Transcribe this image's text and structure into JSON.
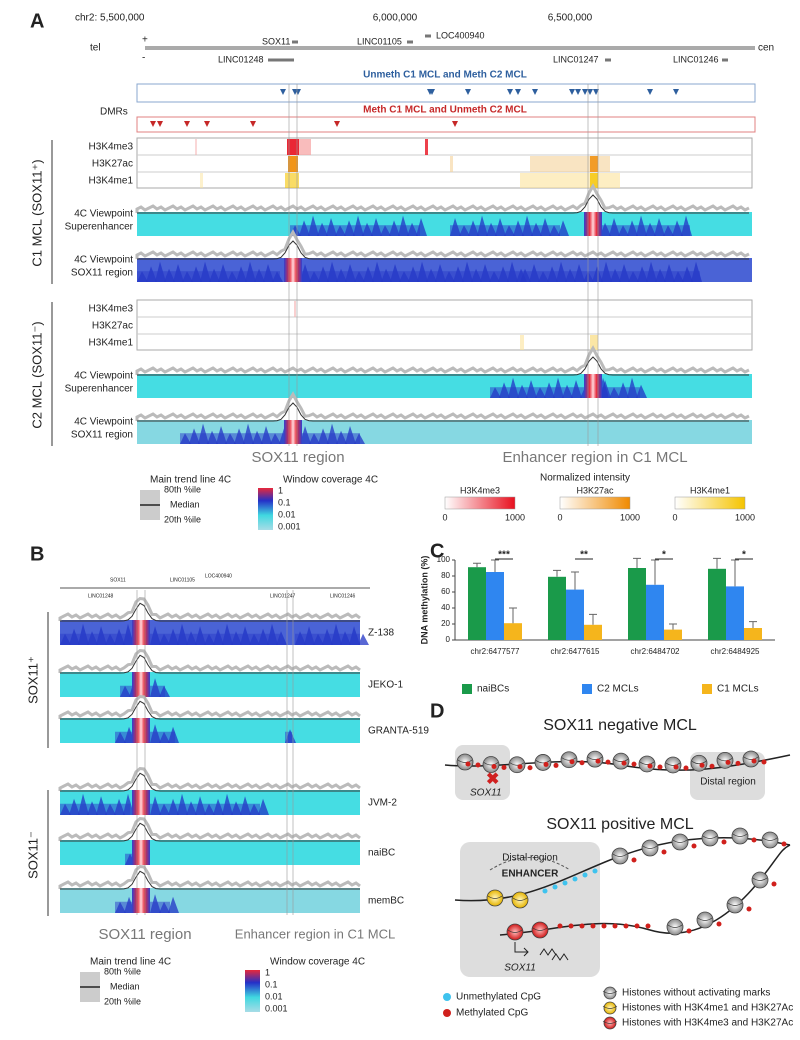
{
  "panel_a": {
    "label": "A",
    "coordinates": [
      "chr2: 5,500,000",
      "6,000,000",
      "6,500,000"
    ],
    "strand": [
      "tel",
      "+",
      "-",
      "cen"
    ],
    "genes": [
      "SOX11",
      "LINC01105",
      "LOC400940",
      "LINC01248",
      "LINC01247",
      "LINC01246"
    ],
    "dmr_label": "DMRs",
    "dmr_tracks": [
      "Unmeth C1 MCL and Meth  C2 MCL",
      "Meth C1 MCL and Unmeth C2 MCL"
    ],
    "groups": [
      {
        "name": "C1 MCL (SOX11⁺)",
        "histone_tracks": [
          "H3K4me3",
          "H3K27ac",
          "H3K4me1"
        ],
        "viewpoints": [
          [
            "4C Viewpoint",
            "Superenhancer"
          ],
          [
            "4C Viewpoint",
            "SOX11 region"
          ]
        ]
      },
      {
        "name": "C2 MCL (SOX11⁻)",
        "histone_tracks": [
          "H3K4me3",
          "H3K27ac",
          "H3K4me1"
        ],
        "viewpoints": [
          [
            "4C Viewpoint",
            "Superenhancer"
          ],
          [
            "4C Viewpoint",
            "SOX11 region"
          ]
        ]
      }
    ],
    "regions": [
      "SOX11 region",
      "Enhancer region in C1 MCL"
    ],
    "legend": {
      "trend_title": "Main trend line 4C",
      "trend_labels": [
        "80th %ile",
        "Median",
        "20th %ile"
      ],
      "coverage_title": "Window coverage 4C",
      "coverage_labels": [
        1,
        0.1,
        0.01,
        0.001
      ],
      "intensity_title": "Normalized intensity",
      "intensity_scales": [
        {
          "name": "H3K4me3",
          "min": 0,
          "max": 1000
        },
        {
          "name": "H3K27ac",
          "min": 0,
          "max": 1000
        },
        {
          "name": "H3K4me1",
          "min": 0,
          "max": 1000
        }
      ]
    }
  },
  "panel_b": {
    "label": "B",
    "genes": [
      "SOX11",
      "LINC01105",
      "LOC400940",
      "LINC01248",
      "LINC01247",
      "LINC01246"
    ],
    "groups": [
      {
        "name": "SOX11⁺",
        "samples": [
          "Z-138",
          "JEKO-1",
          "GRANTA-519"
        ]
      },
      {
        "name": "SOX11⁻",
        "samples": [
          "JVM-2",
          "naiBC",
          "memBC"
        ]
      }
    ],
    "regions": [
      "SOX11 region",
      "Enhancer region in C1 MCL"
    ],
    "legend": {
      "trend_title": "Main trend line 4C",
      "trend_labels": [
        "80th %ile",
        "Median",
        "20th %ile"
      ],
      "coverage_title": "Window coverage 4C",
      "coverage_labels": [
        1,
        0.1,
        0.01,
        0.001
      ]
    }
  },
  "chart_data": {
    "type": "bar",
    "panel_label": "C",
    "ylabel": "DNA methylation (%)",
    "categories": [
      "chr2:6477577",
      "chr2:6477615",
      "chr2:6484702",
      "chr2:6484925"
    ],
    "series": [
      {
        "name": "naiBCs",
        "color": "#1a9a4a",
        "values": [
          91,
          79,
          90,
          89
        ],
        "errors": [
          5,
          8,
          12,
          13
        ]
      },
      {
        "name": "C2 MCLs",
        "color": "#2f86f0",
        "values": [
          85,
          63,
          69,
          67
        ],
        "errors": [
          15,
          22,
          31,
          33
        ]
      },
      {
        "name": "C1 MCLs",
        "color": "#f5b51c",
        "values": [
          21,
          19,
          13,
          15
        ],
        "errors": [
          19,
          13,
          7,
          8
        ]
      }
    ],
    "significance": [
      "***",
      "**",
      "*",
      "*"
    ],
    "ylim": [
      0,
      100
    ],
    "yticks": [
      0,
      20,
      40,
      60,
      80,
      100
    ]
  },
  "panel_d": {
    "label": "D",
    "negative_title": "SOX11 negative MCL",
    "negative_labels": [
      "SOX11",
      "Distal region"
    ],
    "positive_title": "SOX11 positive MCL",
    "positive_labels": [
      "Distal region",
      "ENHANCER",
      "SOX11"
    ],
    "legend": [
      "Unmethylated CpG",
      "Methylated CpG",
      "Histones without activating marks",
      "Histones with H3K4me1 and H3K27Ac",
      "Histones with H3K4me3 and H3K27Ac"
    ]
  }
}
